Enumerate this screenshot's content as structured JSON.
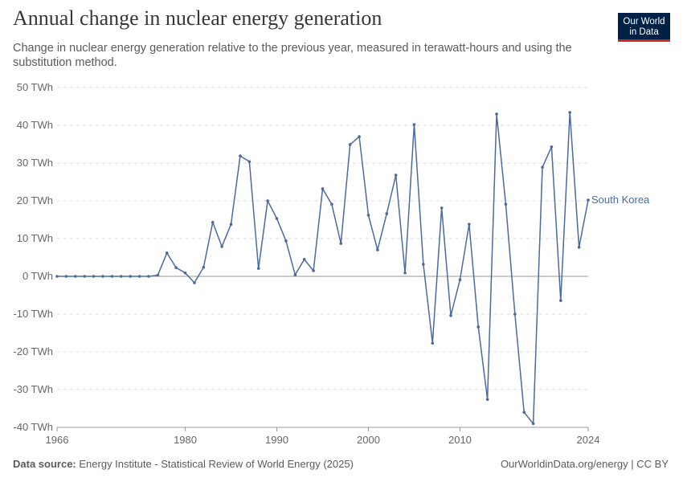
{
  "chart_data": {
    "type": "line",
    "title": "Annual change in nuclear energy generation",
    "subtitle": "Change in nuclear energy generation relative to the previous year, measured in terawatt-hours and using the substitution method.",
    "logo": [
      "Our World",
      "in Data"
    ],
    "source_label": "Data source:",
    "source": "Energy Institute - Statistical Review of World Energy (2025)",
    "credit": "OurWorldinData.org/energy | CC BY",
    "x": [
      1966,
      1967,
      1968,
      1969,
      1970,
      1971,
      1972,
      1973,
      1974,
      1975,
      1976,
      1977,
      1978,
      1979,
      1980,
      1981,
      1982,
      1983,
      1984,
      1985,
      1986,
      1987,
      1988,
      1989,
      1990,
      1991,
      1992,
      1993,
      1994,
      1995,
      1996,
      1997,
      1998,
      1999,
      2000,
      2001,
      2002,
      2003,
      2004,
      2005,
      2006,
      2007,
      2008,
      2009,
      2010,
      2011,
      2012,
      2013,
      2014,
      2015,
      2016,
      2017,
      2018,
      2019,
      2020,
      2021,
      2022,
      2023,
      2024
    ],
    "series": [
      {
        "name": "South Korea",
        "color": "#4c6a9c",
        "values": [
          0,
          0,
          0,
          0,
          0,
          0,
          0,
          0,
          0,
          0,
          0,
          0.3,
          6.2,
          2.3,
          0.9,
          -1.7,
          2.4,
          14.3,
          7.9,
          13.8,
          31.9,
          30.4,
          2.1,
          20,
          15.3,
          9.4,
          0.4,
          4.5,
          1.5,
          23.2,
          19.1,
          8.7,
          34.9,
          37,
          16.2,
          7,
          16.6,
          26.8,
          0.9,
          40.2,
          3.2,
          -17.7,
          18.1,
          -10.4,
          -0.9,
          13.8,
          -13.4,
          -32.6,
          43,
          19.1,
          -10,
          -36,
          -39,
          28.9,
          34.3,
          -6.4,
          43.4,
          7.7,
          20.2
        ]
      }
    ],
    "xlim": [
      1966,
      2024
    ],
    "xticks": [
      1966,
      1980,
      1990,
      2000,
      2010,
      2024
    ],
    "ylim": [
      -40,
      50
    ],
    "yticks": [
      {
        "value": -40,
        "label": "-40 TWh"
      },
      {
        "value": -30,
        "label": "-30 TWh"
      },
      {
        "value": -20,
        "label": "-20 TWh"
      },
      {
        "value": -10,
        "label": "-10 TWh"
      },
      {
        "value": 0,
        "label": "0 TWh"
      },
      {
        "value": 10,
        "label": "10 TWh"
      },
      {
        "value": 20,
        "label": "20 TWh"
      },
      {
        "value": 30,
        "label": "30 TWh"
      },
      {
        "value": 40,
        "label": "40 TWh"
      },
      {
        "value": 50,
        "label": "50 TWh"
      }
    ],
    "grid": true
  }
}
